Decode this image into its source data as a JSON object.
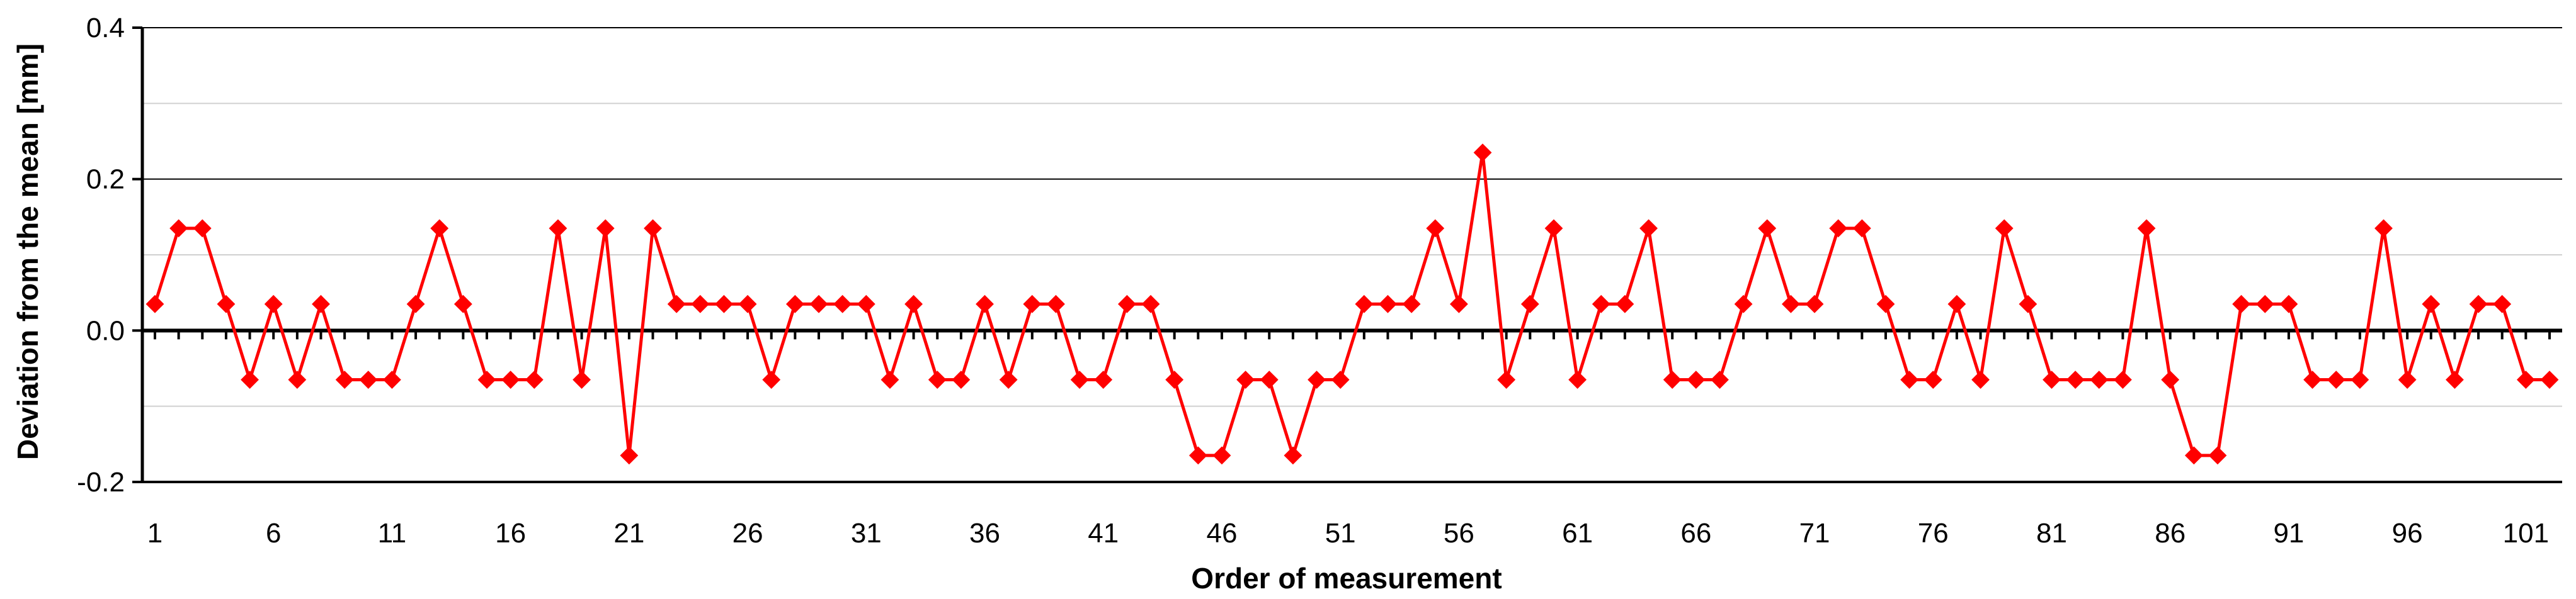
{
  "chart_data": {
    "type": "line",
    "xlabel": "Order of measurement",
    "ylabel": "Deviation from the mean [mm]",
    "ylim": [
      -0.2,
      0.4
    ],
    "yticks": [
      "-0.2",
      "0.0",
      "0.2",
      "0.4"
    ],
    "xtick_labels": [
      "1",
      "6",
      "11",
      "16",
      "21",
      "26",
      "31",
      "36",
      "41",
      "46",
      "51",
      "56",
      "61",
      "66",
      "71",
      "76",
      "81",
      "86",
      "91",
      "96",
      "101"
    ],
    "grid": "major horizontal lines at 0.2 steps, minor lines at 0.1 steps",
    "line_color": "#ff0000",
    "marker": "diamond",
    "zero_line": "bold dashed black",
    "series": [
      {
        "x": [
          1,
          2,
          3,
          4,
          5,
          6,
          7,
          8,
          9,
          10,
          11,
          12,
          13,
          14,
          15,
          16,
          17,
          18,
          19,
          20,
          21,
          22,
          23,
          24,
          25,
          26,
          27,
          28,
          29,
          30,
          31,
          32,
          33,
          34,
          35,
          36,
          37,
          38,
          39,
          40,
          41,
          42,
          43,
          44,
          45,
          46,
          47,
          48,
          49,
          50,
          51,
          52,
          53,
          54,
          55,
          56,
          57,
          58,
          59,
          60,
          61,
          62,
          63,
          64,
          65,
          66,
          67,
          68,
          69,
          70,
          71,
          72,
          73,
          74,
          75,
          76,
          77,
          78,
          79,
          80,
          81,
          82,
          83,
          84,
          85,
          86,
          87,
          88,
          89,
          90,
          91,
          92,
          93,
          94,
          95,
          96,
          97,
          98,
          99,
          100,
          101,
          102
        ],
        "values": [
          0.035,
          0.135,
          0.135,
          0.035,
          -0.065,
          0.035,
          -0.065,
          0.035,
          -0.065,
          -0.065,
          -0.065,
          0.035,
          0.135,
          0.035,
          -0.065,
          -0.065,
          -0.065,
          0.135,
          -0.065,
          0.135,
          -0.165,
          0.135,
          0.035,
          0.035,
          0.035,
          0.035,
          -0.065,
          0.035,
          0.035,
          0.035,
          0.035,
          -0.065,
          0.035,
          -0.065,
          -0.065,
          0.035,
          -0.065,
          0.035,
          0.035,
          -0.065,
          -0.065,
          0.035,
          0.035,
          -0.065,
          -0.165,
          -0.165,
          -0.065,
          -0.065,
          -0.165,
          -0.065,
          -0.065,
          0.035,
          0.035,
          0.035,
          0.135,
          0.035,
          0.235,
          -0.065,
          0.035,
          0.135,
          -0.065,
          0.035,
          0.035,
          0.135,
          -0.065,
          -0.065,
          -0.065,
          0.035,
          0.135,
          0.035,
          0.035,
          0.135,
          0.135,
          0.035,
          -0.065,
          -0.065,
          0.035,
          -0.065,
          0.135,
          0.035,
          -0.065,
          -0.065,
          -0.065,
          -0.065,
          0.135,
          -0.065,
          -0.165,
          -0.165,
          0.035,
          0.035,
          0.035,
          -0.065,
          -0.065,
          -0.065,
          0.135,
          -0.065,
          0.035,
          -0.065,
          0.035,
          0.035,
          -0.065,
          -0.065
        ]
      }
    ]
  }
}
